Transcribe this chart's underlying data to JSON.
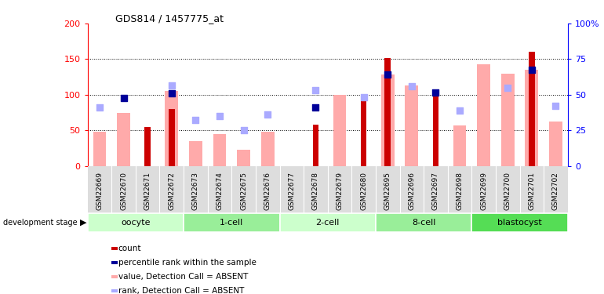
{
  "title": "GDS814 / 1457775_at",
  "samples": [
    "GSM22669",
    "GSM22670",
    "GSM22671",
    "GSM22672",
    "GSM22673",
    "GSM22674",
    "GSM22675",
    "GSM22676",
    "GSM22677",
    "GSM22678",
    "GSM22679",
    "GSM22680",
    "GSM22695",
    "GSM22696",
    "GSM22697",
    "GSM22698",
    "GSM22699",
    "GSM22700",
    "GSM22701",
    "GSM22702"
  ],
  "stages": [
    {
      "label": "oocyte",
      "start": 0,
      "end": 3,
      "color": "#ccffcc"
    },
    {
      "label": "1-cell",
      "start": 4,
      "end": 7,
      "color": "#99ee99"
    },
    {
      "label": "2-cell",
      "start": 8,
      "end": 11,
      "color": "#ccffcc"
    },
    {
      "label": "8-cell",
      "start": 12,
      "end": 15,
      "color": "#99ee99"
    },
    {
      "label": "blastocyst",
      "start": 16,
      "end": 19,
      "color": "#55dd55"
    }
  ],
  "count_bars": [
    0,
    0,
    55,
    80,
    0,
    0,
    0,
    0,
    0,
    58,
    0,
    95,
    152,
    0,
    102,
    0,
    0,
    0,
    160,
    0
  ],
  "count_color": "#cc0000",
  "value_absent_bars": [
    48,
    75,
    0,
    105,
    35,
    45,
    23,
    48,
    0,
    0,
    100,
    0,
    128,
    113,
    0,
    57,
    143,
    130,
    135,
    63
  ],
  "value_absent_color": "#ffaaaa",
  "percentile_markers": [
    0,
    95,
    0,
    102,
    0,
    0,
    0,
    0,
    0,
    82,
    0,
    0,
    128,
    0,
    103,
    0,
    0,
    0,
    135,
    0
  ],
  "percentile_color": "#000099",
  "rank_absent_markers": [
    82,
    0,
    0,
    113,
    65,
    70,
    50,
    72,
    0,
    107,
    0,
    97,
    0,
    112,
    0,
    78,
    0,
    110,
    0,
    85
  ],
  "rank_absent_color": "#aaaaff",
  "ylim_left": [
    0,
    200
  ],
  "yticks_left": [
    0,
    50,
    100,
    150,
    200
  ],
  "ytick_labels_left": [
    "0",
    "50",
    "100",
    "150",
    "200"
  ],
  "ytick_labels_right": [
    "0",
    "25",
    "50",
    "75",
    "100%"
  ],
  "grid_lines": [
    50,
    100,
    150
  ],
  "legend_items": [
    {
      "color": "#cc0000",
      "label": "count"
    },
    {
      "color": "#000099",
      "label": "percentile rank within the sample"
    },
    {
      "color": "#ffaaaa",
      "label": "value, Detection Call = ABSENT"
    },
    {
      "color": "#aaaaff",
      "label": "rank, Detection Call = ABSENT"
    }
  ]
}
